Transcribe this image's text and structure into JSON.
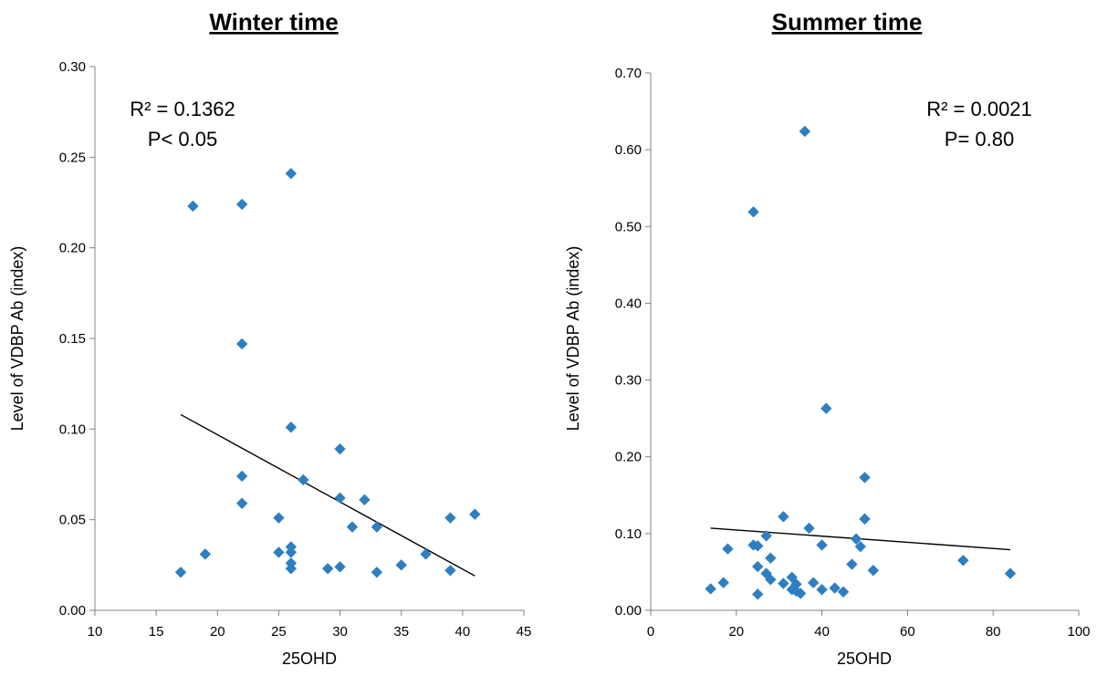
{
  "chart_data": [
    {
      "type": "scatter",
      "title": "Winter time",
      "xlabel": "25OHD",
      "ylabel": "Level of VDBP Ab (index)",
      "xlim": [
        10,
        45
      ],
      "ylim": [
        0,
        0.3
      ],
      "xticks": [
        10,
        15,
        20,
        25,
        30,
        35,
        40,
        45
      ],
      "xtick_labels": [
        "10",
        "15",
        "20",
        "25",
        "30",
        "35",
        "40",
        "45"
      ],
      "yticks": [
        0,
        0.05,
        0.1,
        0.15,
        0.2,
        0.25,
        0.3
      ],
      "ytick_labels": [
        "0.00",
        "0.05",
        "0.10",
        "0.15",
        "0.20",
        "0.25",
        "0.30"
      ],
      "grid": false,
      "annotations": [
        "R² = 0.1362",
        "P< 0.05"
      ],
      "marker_color": "#2E7EC1",
      "trendline_color": "#000000",
      "trendline": {
        "x": [
          17,
          41
        ],
        "y": [
          0.108,
          0.019
        ]
      },
      "points": [
        {
          "x": 17,
          "y": 0.021
        },
        {
          "x": 18,
          "y": 0.223
        },
        {
          "x": 19,
          "y": 0.031
        },
        {
          "x": 22,
          "y": 0.224
        },
        {
          "x": 22,
          "y": 0.147
        },
        {
          "x": 22,
          "y": 0.074
        },
        {
          "x": 22,
          "y": 0.059
        },
        {
          "x": 25,
          "y": 0.051
        },
        {
          "x": 25,
          "y": 0.032
        },
        {
          "x": 26,
          "y": 0.241
        },
        {
          "x": 26,
          "y": 0.101
        },
        {
          "x": 26,
          "y": 0.035
        },
        {
          "x": 26,
          "y": 0.032
        },
        {
          "x": 26,
          "y": 0.026
        },
        {
          "x": 26,
          "y": 0.023
        },
        {
          "x": 27,
          "y": 0.072
        },
        {
          "x": 29,
          "y": 0.023
        },
        {
          "x": 30,
          "y": 0.089
        },
        {
          "x": 30,
          "y": 0.062
        },
        {
          "x": 30,
          "y": 0.024
        },
        {
          "x": 31,
          "y": 0.046
        },
        {
          "x": 32,
          "y": 0.061
        },
        {
          "x": 33,
          "y": 0.046
        },
        {
          "x": 33,
          "y": 0.021
        },
        {
          "x": 35,
          "y": 0.025
        },
        {
          "x": 37,
          "y": 0.031
        },
        {
          "x": 39,
          "y": 0.051
        },
        {
          "x": 39,
          "y": 0.022
        },
        {
          "x": 41,
          "y": 0.053
        }
      ]
    },
    {
      "type": "scatter",
      "title": "Summer time",
      "xlabel": "25OHD",
      "ylabel": "Level of VDBP Ab (index)",
      "xlim": [
        0,
        100
      ],
      "ylim": [
        0,
        0.7
      ],
      "xticks": [
        0,
        20,
        40,
        60,
        80,
        100
      ],
      "xtick_labels": [
        "0",
        "20",
        "40",
        "60",
        "80",
        "100"
      ],
      "yticks": [
        0,
        0.1,
        0.2,
        0.3,
        0.4,
        0.5,
        0.6,
        0.7
      ],
      "ytick_labels": [
        "0.00",
        "0.10",
        "0.20",
        "0.30",
        "0.40",
        "0.50",
        "0.60",
        "0.70"
      ],
      "grid": false,
      "annotations": [
        "R² = 0.0021",
        "P= 0.80"
      ],
      "marker_color": "#2E7EC1",
      "trendline_color": "#000000",
      "trendline": {
        "x": [
          14,
          84
        ],
        "y": [
          0.107,
          0.079
        ]
      },
      "points": [
        {
          "x": 14,
          "y": 0.028
        },
        {
          "x": 17,
          "y": 0.036
        },
        {
          "x": 18,
          "y": 0.08
        },
        {
          "x": 24,
          "y": 0.519
        },
        {
          "x": 24,
          "y": 0.085
        },
        {
          "x": 25,
          "y": 0.084
        },
        {
          "x": 25,
          "y": 0.057
        },
        {
          "x": 25,
          "y": 0.021
        },
        {
          "x": 27,
          "y": 0.097
        },
        {
          "x": 27,
          "y": 0.048
        },
        {
          "x": 28,
          "y": 0.068
        },
        {
          "x": 28,
          "y": 0.04
        },
        {
          "x": 31,
          "y": 0.122
        },
        {
          "x": 31,
          "y": 0.035
        },
        {
          "x": 33,
          "y": 0.043
        },
        {
          "x": 33,
          "y": 0.027
        },
        {
          "x": 34,
          "y": 0.034
        },
        {
          "x": 34,
          "y": 0.025
        },
        {
          "x": 35,
          "y": 0.022
        },
        {
          "x": 36,
          "y": 0.624
        },
        {
          "x": 37,
          "y": 0.107
        },
        {
          "x": 38,
          "y": 0.036
        },
        {
          "x": 40,
          "y": 0.085
        },
        {
          "x": 40,
          "y": 0.027
        },
        {
          "x": 41,
          "y": 0.263
        },
        {
          "x": 43,
          "y": 0.029
        },
        {
          "x": 45,
          "y": 0.024
        },
        {
          "x": 47,
          "y": 0.06
        },
        {
          "x": 48,
          "y": 0.093
        },
        {
          "x": 49,
          "y": 0.083
        },
        {
          "x": 50,
          "y": 0.173
        },
        {
          "x": 50,
          "y": 0.119
        },
        {
          "x": 52,
          "y": 0.052
        },
        {
          "x": 73,
          "y": 0.065
        },
        {
          "x": 84,
          "y": 0.048
        }
      ]
    }
  ]
}
